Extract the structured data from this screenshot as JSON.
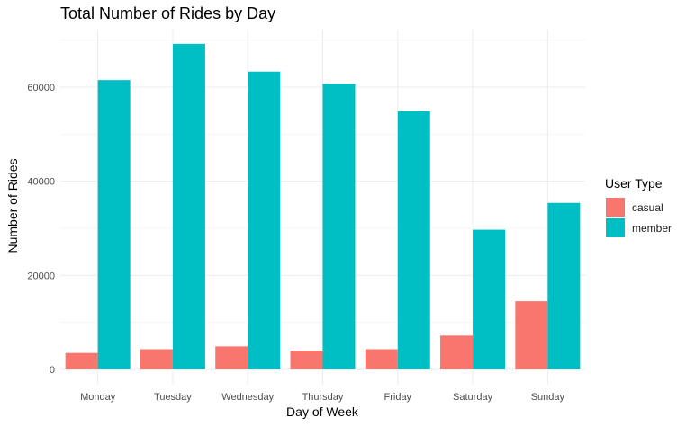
{
  "chart_data": {
    "type": "bar",
    "title": "Total Number of Rides by Day",
    "xlabel": "Day of Week",
    "ylabel": "Number of Rides",
    "categories": [
      "Monday",
      "Tuesday",
      "Wednesday",
      "Thursday",
      "Friday",
      "Saturday",
      "Sunday"
    ],
    "series": [
      {
        "name": "casual",
        "color": "#F8766D",
        "values": [
          3500,
          4300,
          4900,
          4000,
          4300,
          7200,
          14500
        ]
      },
      {
        "name": "member",
        "color": "#00BFC4",
        "values": [
          61500,
          69200,
          63300,
          60700,
          54900,
          29700,
          35400
        ]
      }
    ],
    "ylim": [
      0,
      71000
    ],
    "yticks": [
      0,
      20000,
      40000,
      60000
    ],
    "ytick_labels": [
      "0",
      "20000",
      "40000",
      "60000"
    ],
    "grid": true,
    "legend": {
      "title": "User Type",
      "position": "right"
    }
  }
}
